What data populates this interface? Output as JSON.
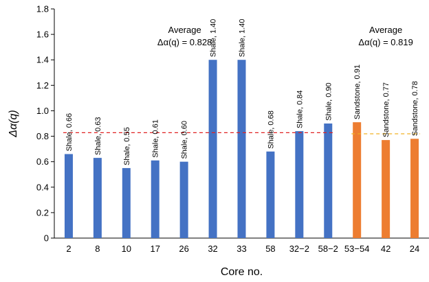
{
  "chart_data": {
    "type": "bar",
    "xlabel": "Core no.",
    "ylabel": "Δα(q)",
    "ylim": [
      0,
      1.8
    ],
    "yticks": [
      "0",
      "0.2",
      "0.4",
      "0.6",
      "0.8",
      "1.0",
      "1.2",
      "1.4",
      "1.6",
      "1.8"
    ],
    "grid": false,
    "categories": [
      "2",
      "8",
      "10",
      "17",
      "26",
      "32",
      "33",
      "58",
      "32−2",
      "58−2",
      "53−54",
      "42",
      "24"
    ],
    "values": [
      0.66,
      0.63,
      0.55,
      0.61,
      0.6,
      1.4,
      1.4,
      0.68,
      0.84,
      0.9,
      0.91,
      0.77,
      0.78
    ],
    "data_labels": [
      "Shale, 0.66",
      "Shale, 0.63",
      "Shale, 0.55",
      "Shale, 0.61",
      "Shale, 0.60",
      "Shale, 1.40",
      "Shale, 1.40",
      "Shale, 0.68",
      "Shale, 0.84",
      "Shale, 0.90",
      "Sandstone, 0.91",
      "Sandstone, 0.77",
      "Sandstone, 0.78"
    ],
    "groups": [
      {
        "name": "Shale",
        "color": "#4472C4",
        "indices": [
          0,
          1,
          2,
          3,
          4,
          5,
          6,
          7,
          8,
          9
        ],
        "average": 0.828,
        "average_title": "Average",
        "average_text": "Δα(q) = 0.828",
        "average_line_color": "#E02020"
      },
      {
        "name": "Sandstone",
        "color": "#ED7D31",
        "indices": [
          10,
          11,
          12
        ],
        "average": 0.819,
        "average_title": "Average",
        "average_text": "Δα(q) = 0.819",
        "average_line_color": "#F0B020"
      }
    ]
  }
}
